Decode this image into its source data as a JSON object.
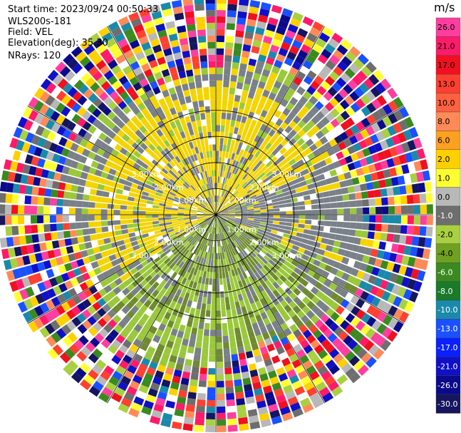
{
  "header": {
    "start_time": "Start time: 2023/09/24 00:50:33",
    "site": "WLS200s-181",
    "field": "Field: VEL",
    "elevation": "Elevation(deg): 35.30",
    "nrays": "NRays: 120"
  },
  "colorbar": {
    "unit": "m/s",
    "ticks": [
      "26.0",
      "21.0",
      "17.0",
      "13.0",
      "10.0",
      "8.0",
      "6.0",
      "2.0",
      "1.0",
      "0.0",
      "-1.0",
      "-2.0",
      "-4.0",
      "-6.0",
      "-8.0",
      "-10.0",
      "-13.0",
      "-17.0",
      "-21.0",
      "-26.0",
      "-30.0"
    ],
    "colors": [
      "#ff3ea0",
      "#ff1a6a",
      "#f01020",
      "#ff4030",
      "#ff6040",
      "#ff8a58",
      "#ffa020",
      "#ffd000",
      "#ffff30",
      "#b8b8b8",
      "#6e6e6e",
      "#a8d040",
      "#70a020",
      "#3a8a20",
      "#1a7a2a",
      "#1a8aaa",
      "#1a50ff",
      "#0a20ff",
      "#1010c8",
      "#0a0a8a",
      "#151560"
    ]
  },
  "chart_data": {
    "type": "heatmap",
    "projection": "polar-ppi",
    "field": "VEL",
    "unit": "m/s",
    "nrays": 120,
    "elevation_deg": 35.3,
    "max_range_km": 5.0,
    "ring_labels": [
      "1.00km",
      "2.00km",
      "3.00km"
    ],
    "color_levels": [
      -30.0,
      -26.0,
      -21.0,
      -17.0,
      -13.0,
      -10.0,
      -8.0,
      -6.0,
      -4.0,
      -2.0,
      -1.0,
      0.0,
      1.0,
      2.0,
      6.0,
      8.0,
      10.0,
      13.0,
      17.0,
      21.0,
      26.0
    ],
    "legend_position": "right"
  }
}
